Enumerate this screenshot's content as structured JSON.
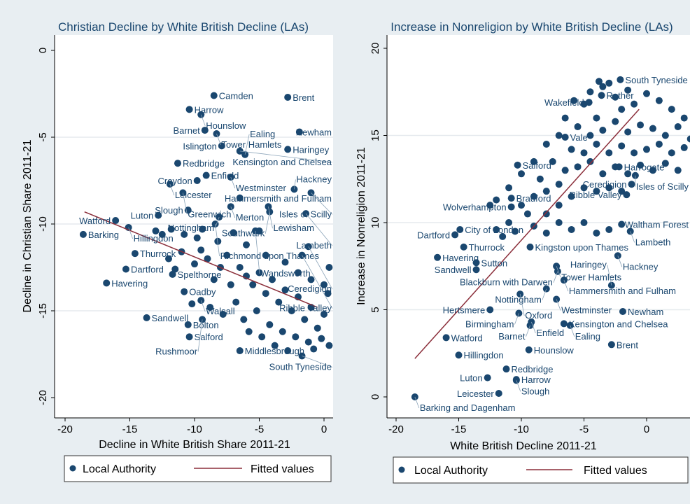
{
  "colors": {
    "background": "#e8eef2",
    "plot_bg": "#ffffff",
    "marker": "#1a476f",
    "fit_line": "#8b2e3a",
    "grid": "#e6eaee"
  },
  "chart_data": [
    {
      "type": "scatter",
      "title": "Christian Decline by White British Decline (LAs)",
      "xlabel": "Decline in White British Share 2011-21",
      "ylabel": "Decline in Christian Share 2011-21",
      "xlim": [
        -20,
        1
      ],
      "ylim": [
        -21,
        1
      ],
      "xticks": [
        "-20",
        "-15",
        "-10",
        "-5",
        "0"
      ],
      "yticks": [
        "0",
        "-5",
        "-10",
        "-15",
        "-20"
      ],
      "grid": true,
      "legend": {
        "position": "bottom",
        "entries": [
          "Local Authority",
          "Fitted values"
        ]
      },
      "points": [
        {
          "name": "Camden",
          "x": -8.5,
          "y": -2.6
        },
        {
          "name": "Brent",
          "x": -2.8,
          "y": -2.7
        },
        {
          "name": "Harrow",
          "x": -10.4,
          "y": -3.4
        },
        {
          "name": "Hounslow",
          "x": -9.5,
          "y": -3.7
        },
        {
          "name": "Barnet",
          "x": -9.2,
          "y": -4.6
        },
        {
          "name": "Tower Hamlets",
          "x": -8.3,
          "y": -4.8
        },
        {
          "name": "Newham",
          "x": -1.9,
          "y": -4.7
        },
        {
          "name": "Islington",
          "x": -7.9,
          "y": -5.5
        },
        {
          "name": "Kensington and Chelsea",
          "x": -6.5,
          "y": -5.8
        },
        {
          "name": "Ealing",
          "x": -6.1,
          "y": -6.0
        },
        {
          "name": "Haringey",
          "x": -2.8,
          "y": -5.7
        },
        {
          "name": "Redbridge",
          "x": -11.3,
          "y": -6.5
        },
        {
          "name": "Enfield",
          "x": -9.1,
          "y": -7.2
        },
        {
          "name": "Westminster",
          "x": -7.2,
          "y": -7.3
        },
        {
          "name": "Croydon",
          "x": -9.8,
          "y": -7.5
        },
        {
          "name": "Leicester",
          "x": -11.9,
          "y": -7.7
        },
        {
          "name": "Greenwich",
          "x": -10.9,
          "y": -8.2
        },
        {
          "name": "Hammersmith and Fulham",
          "x": -6.5,
          "y": -8.5
        },
        {
          "name": "Hackney",
          "x": -2.3,
          "y": -8.0
        },
        {
          "name": "Isles of Scilly",
          "x": -1.0,
          "y": -8.2
        },
        {
          "name": "Merton",
          "x": -7.2,
          "y": -9.0
        },
        {
          "name": "Lewisham",
          "x": -4.3,
          "y": -9.0
        },
        {
          "name": "Southwark",
          "x": -4.2,
          "y": -9.3
        },
        {
          "name": "Lambeth",
          "x": -1.4,
          "y": -9.4
        },
        {
          "name": "Slough",
          "x": -10.5,
          "y": -9.2
        },
        {
          "name": "Nottingham",
          "x": -8.1,
          "y": -9.6
        },
        {
          "name": "Luton",
          "x": -12.8,
          "y": -9.5
        },
        {
          "name": "Watford",
          "x": -16.1,
          "y": -9.8
        },
        {
          "name": "Hillingdon",
          "x": -15.1,
          "y": -10.2
        },
        {
          "name": "Barking",
          "x": -18.6,
          "y": -10.6
        },
        {
          "name": "Richmond upon Thames",
          "x": -8.4,
          "y": -10.0
        },
        {
          "name": "Wandsworth",
          "x": -5.3,
          "y": -10.4
        },
        {
          "name": "Thurrock",
          "x": -14.6,
          "y": -11.7
        },
        {
          "name": "Ceredigion",
          "x": -1.2,
          "y": -11.3
        },
        {
          "name": "Ribble Valley",
          "x": -1.7,
          "y": -11.8
        },
        {
          "name": "Dartford",
          "x": -15.3,
          "y": -12.6
        },
        {
          "name": "Havering",
          "x": -16.8,
          "y": -13.4
        },
        {
          "name": "Spelthorne",
          "x": -11.7,
          "y": -12.9
        },
        {
          "name": "Oadby",
          "x": -10.8,
          "y": -13.9
        },
        {
          "name": "Walsall",
          "x": -9.5,
          "y": -14.4
        },
        {
          "name": "Sandwell",
          "x": -13.7,
          "y": -15.4
        },
        {
          "name": "Bolton",
          "x": -10.5,
          "y": -15.8
        },
        {
          "name": "Salford",
          "x": -10.4,
          "y": -16.5
        },
        {
          "name": "Middlesbrough",
          "x": -6.5,
          "y": -17.3
        },
        {
          "name": "Rushmoor",
          "x": -9.4,
          "y": -15.5
        },
        {
          "name": "South Tyneside",
          "x": -1.7,
          "y": -17.6
        }
      ],
      "cluster": [
        [
          -6.5,
          -12.5
        ],
        [
          -6,
          -13
        ],
        [
          -5.5,
          -13.5
        ],
        [
          -5,
          -12.8
        ],
        [
          -4.5,
          -14
        ],
        [
          -4,
          -13.2
        ],
        [
          -3.5,
          -14.5
        ],
        [
          -3,
          -13.8
        ],
        [
          -2.5,
          -15
        ],
        [
          -2,
          -14.2
        ],
        [
          -1.5,
          -15.5
        ],
        [
          -1,
          -14.8
        ],
        [
          -0.5,
          -16
        ],
        [
          0,
          -15.2
        ],
        [
          0.3,
          -14
        ],
        [
          -6.8,
          -14.5
        ],
        [
          -6.2,
          -15.5
        ],
        [
          -5.8,
          -16.2
        ],
        [
          -5.2,
          -15
        ],
        [
          -4.8,
          -16.5
        ],
        [
          -4.2,
          -15.8
        ],
        [
          -3.8,
          -17
        ],
        [
          -3.2,
          -16.2
        ],
        [
          -2.8,
          -17.3
        ],
        [
          -2.2,
          -16.5
        ],
        [
          -1.2,
          -16.8
        ],
        [
          -0.8,
          -17.2
        ],
        [
          -0.2,
          -16.6
        ],
        [
          0.4,
          -17
        ],
        [
          -3,
          -12.2
        ],
        [
          -2,
          -12.8
        ],
        [
          -1,
          -13.2
        ],
        [
          0,
          -13.5
        ],
        [
          0.4,
          -12.5
        ],
        [
          -7.5,
          -11.8
        ],
        [
          -8,
          -12.5
        ],
        [
          -8.5,
          -13.2
        ],
        [
          -7.2,
          -13.5
        ],
        [
          -9,
          -12
        ],
        [
          -9.5,
          -11.5
        ],
        [
          -10,
          -12.3
        ],
        [
          -11,
          -11.6
        ],
        [
          -12,
          -12
        ],
        [
          -11.5,
          -12.6
        ],
        [
          -8.8,
          -14.8
        ],
        [
          -7.8,
          -15.2
        ],
        [
          -10.2,
          -14.6
        ],
        [
          -9.8,
          -10.8
        ],
        [
          -8.2,
          -11
        ],
        [
          -6,
          -11.2
        ],
        [
          -4.5,
          -11.8
        ],
        [
          -13,
          -10.4
        ],
        [
          -12.5,
          -10.6
        ],
        [
          -11.8,
          -10.3
        ],
        [
          -10.8,
          -10.6
        ],
        [
          -9.4,
          -10.3
        ],
        [
          -7,
          -10.5
        ],
        [
          -5,
          -10.4
        ]
      ],
      "fitted": [
        [
          -18.5,
          -9.3
        ],
        [
          -0.5,
          -14.8
        ]
      ]
    },
    {
      "type": "scatter",
      "title": "Increase in Nonreligion by White British Decline (LAs)",
      "xlabel": "White British Decline 2011-21",
      "ylabel": "Increase in Nonreligion 2011-21",
      "xlim": [
        -20,
        3.5
      ],
      "ylim": [
        -1,
        21
      ],
      "xticks": [
        "-20",
        "-15",
        "-10",
        "-5",
        "0"
      ],
      "yticks": [
        "0",
        "5",
        "10",
        "15",
        "20"
      ],
      "grid": true,
      "legend": {
        "position": "bottom",
        "entries": [
          "Local Authority",
          "Fitted values"
        ]
      },
      "points": [
        {
          "name": "South Tyneside",
          "x": -2.1,
          "y": 18.2
        },
        {
          "name": "Rother",
          "x": -3.6,
          "y": 17.3
        },
        {
          "name": "Wakefield",
          "x": -4.6,
          "y": 16.9
        },
        {
          "name": "Vale",
          "x": -6.5,
          "y": 14.9
        },
        {
          "name": "Salford",
          "x": -10.3,
          "y": 13.3
        },
        {
          "name": "Harrogate",
          "x": -2.2,
          "y": 13.2
        },
        {
          "name": "Isles of Scilly",
          "x": -0.9,
          "y": 12.7
        },
        {
          "name": "Ceredigion",
          "x": -1.2,
          "y": 12.2
        },
        {
          "name": "Ribble Valley",
          "x": -1.6,
          "y": 11.6
        },
        {
          "name": "Bradford",
          "x": -10.8,
          "y": 11.4
        },
        {
          "name": "Wolverhampton",
          "x": -10.8,
          "y": 10.9
        },
        {
          "name": "Waltham Forest",
          "x": -2.0,
          "y": 9.9
        },
        {
          "name": "Lambeth",
          "x": -1.3,
          "y": 9.5
        },
        {
          "name": "City of London",
          "x": -14.9,
          "y": 9.6
        },
        {
          "name": "Dartford",
          "x": -15.3,
          "y": 9.3
        },
        {
          "name": "Thurrock",
          "x": -14.6,
          "y": 8.6
        },
        {
          "name": "Kingston upon Thames",
          "x": -9.3,
          "y": 8.6
        },
        {
          "name": "Havering",
          "x": -16.7,
          "y": 8.0
        },
        {
          "name": "Hackney",
          "x": -2.3,
          "y": 8.1
        },
        {
          "name": "Sutton",
          "x": -13.6,
          "y": 7.7
        },
        {
          "name": "Sandwell",
          "x": -13.6,
          "y": 7.3
        },
        {
          "name": "Tower Hamlets",
          "x": -7.2,
          "y": 7.5
        },
        {
          "name": "Blackburn with Darwen",
          "x": -7.1,
          "y": 7.2
        },
        {
          "name": "Hammersmith and Fulham",
          "x": -6.6,
          "y": 6.7
        },
        {
          "name": "Haringey",
          "x": -2.8,
          "y": 6.4
        },
        {
          "name": "Nottingham",
          "x": -8.0,
          "y": 6.2
        },
        {
          "name": "Oxford",
          "x": -10.1,
          "y": 5.9
        },
        {
          "name": "Westminster",
          "x": -7.2,
          "y": 5.6
        },
        {
          "name": "Hertsmere",
          "x": -12.5,
          "y": 5.0
        },
        {
          "name": "Birmingham",
          "x": -10.2,
          "y": 4.8
        },
        {
          "name": "Newham",
          "x": -1.9,
          "y": 4.9
        },
        {
          "name": "Enfield",
          "x": -9.2,
          "y": 4.3
        },
        {
          "name": "Barnet",
          "x": -9.3,
          "y": 4.1
        },
        {
          "name": "Kensington and Chelsea",
          "x": -6.6,
          "y": 4.2
        },
        {
          "name": "Ealing",
          "x": -6.1,
          "y": 4.1
        },
        {
          "name": "Watford",
          "x": -16.0,
          "y": 3.4
        },
        {
          "name": "Brent",
          "x": -2.8,
          "y": 3.0
        },
        {
          "name": "Hounslow",
          "x": -9.4,
          "y": 2.7
        },
        {
          "name": "Hillingdon",
          "x": -15.0,
          "y": 2.4
        },
        {
          "name": "Redbridge",
          "x": -11.2,
          "y": 1.6
        },
        {
          "name": "Luton",
          "x": -12.7,
          "y": 1.1
        },
        {
          "name": "Harrow",
          "x": -10.4,
          "y": 1.0
        },
        {
          "name": "Slough",
          "x": -10.4,
          "y": 0.95
        },
        {
          "name": "Leicester",
          "x": -11.8,
          "y": 0.2
        },
        {
          "name": "Barking and Dagenham",
          "x": -18.5,
          "y": 0.0
        }
      ],
      "cluster": [
        [
          -5,
          16.8
        ],
        [
          -4.5,
          17.5
        ],
        [
          -4,
          16
        ],
        [
          -3.5,
          17.8
        ],
        [
          -3,
          18
        ],
        [
          -2.5,
          17.2
        ],
        [
          -2,
          16.5
        ],
        [
          -1.5,
          17.6
        ],
        [
          -1,
          16.8
        ],
        [
          0,
          17.4
        ],
        [
          1,
          17
        ],
        [
          2,
          16.5
        ],
        [
          3,
          16
        ],
        [
          -5.5,
          15.5
        ],
        [
          -4.5,
          15
        ],
        [
          -3.5,
          15.3
        ],
        [
          -2.5,
          15.8
        ],
        [
          -1.5,
          15.2
        ],
        [
          -0.5,
          15.6
        ],
        [
          0.5,
          15.4
        ],
        [
          1.5,
          15
        ],
        [
          2.5,
          15.5
        ],
        [
          3.5,
          14.8
        ],
        [
          -6,
          14.2
        ],
        [
          -5,
          14
        ],
        [
          -4,
          14.5
        ],
        [
          -3,
          14
        ],
        [
          -2,
          14.4
        ],
        [
          -1,
          14
        ],
        [
          0,
          14.2
        ],
        [
          1,
          14.5
        ],
        [
          2,
          14
        ],
        [
          3,
          14.3
        ],
        [
          -6.5,
          13
        ],
        [
          -5.5,
          13.2
        ],
        [
          -4.5,
          13.5
        ],
        [
          -3.5,
          12.8
        ],
        [
          -2.5,
          13.2
        ],
        [
          -1.5,
          12.8
        ],
        [
          -0.5,
          13.3
        ],
        [
          0.5,
          13
        ],
        [
          1.5,
          13.4
        ],
        [
          2.5,
          13
        ],
        [
          -7,
          12.2
        ],
        [
          -8,
          11.8
        ],
        [
          -7.5,
          13.5
        ],
        [
          -8.5,
          12.5
        ],
        [
          -9,
          11.5
        ],
        [
          -9.5,
          10.5
        ],
        [
          -10,
          11
        ],
        [
          -8,
          10.5
        ],
        [
          -7,
          11
        ],
        [
          -6,
          11.5
        ],
        [
          -5,
          12
        ],
        [
          -4,
          11.8
        ],
        [
          -3,
          12
        ],
        [
          -2,
          11.8
        ],
        [
          -11,
          10
        ],
        [
          -10.5,
          9.5
        ],
        [
          -12,
          9.6
        ],
        [
          -11.5,
          9.2
        ],
        [
          -9,
          9.8
        ],
        [
          -8,
          9.4
        ],
        [
          -7,
          10
        ],
        [
          -6,
          9.6
        ],
        [
          -5,
          10
        ],
        [
          -4,
          9.4
        ],
        [
          -3,
          9.6
        ],
        [
          -12.5,
          11
        ],
        [
          -12,
          11.3
        ],
        [
          -11,
          12
        ],
        [
          -10,
          12.8
        ],
        [
          -9,
          13.5
        ],
        [
          -8,
          14.5
        ],
        [
          -7,
          15
        ],
        [
          -6.5,
          16
        ],
        [
          -5.8,
          17
        ],
        [
          -3.8,
          18.1
        ]
      ],
      "fitted": [
        [
          -18.5,
          2.2
        ],
        [
          -0.6,
          16.5
        ]
      ]
    }
  ]
}
